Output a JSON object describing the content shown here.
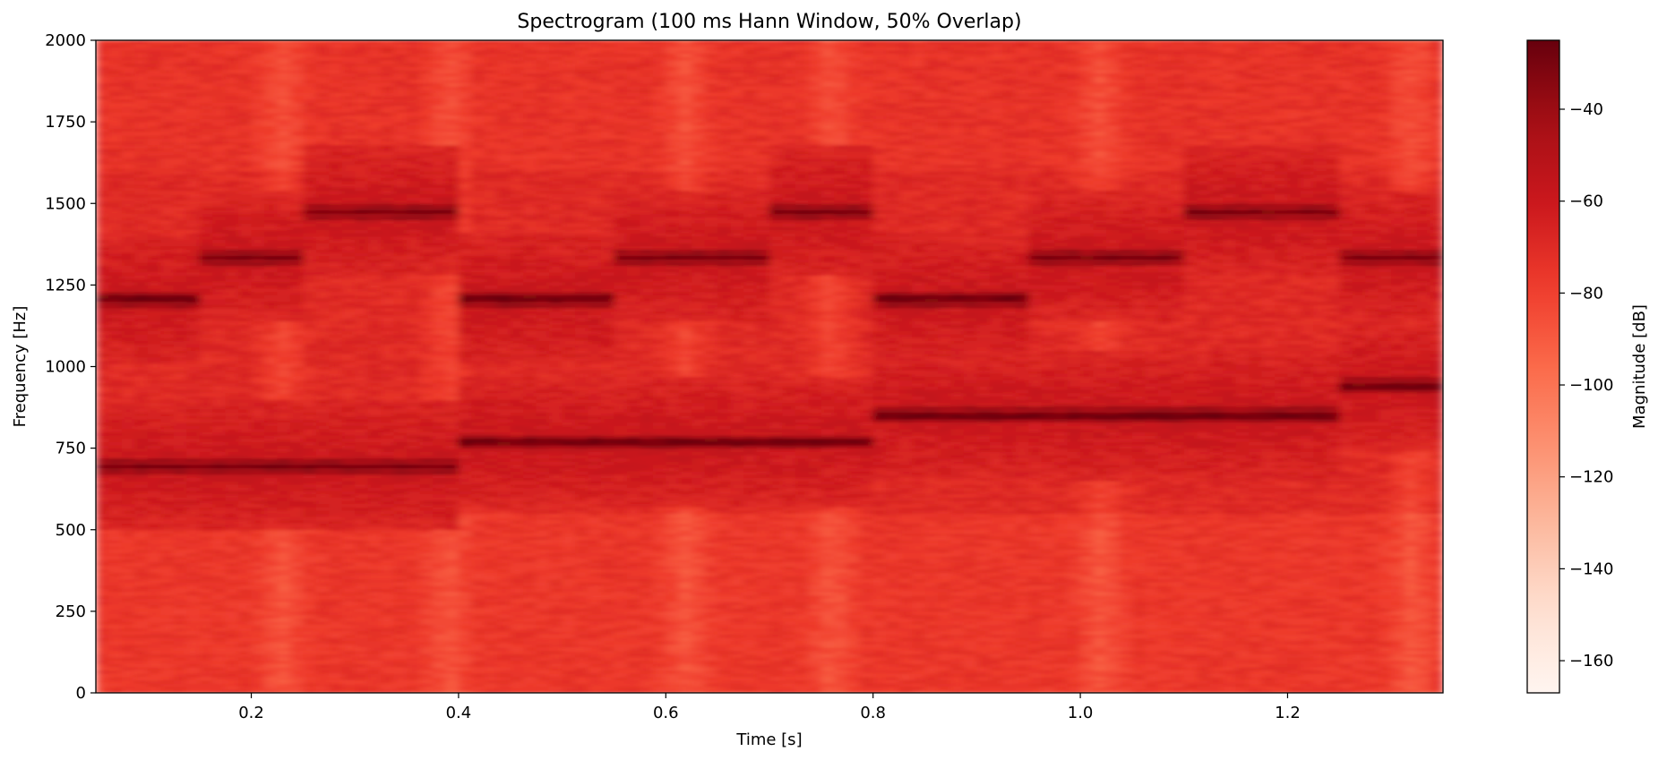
{
  "chart_data": {
    "type": "heatmap",
    "title": "Spectrogram (100 ms Hann Window, 50% Overlap)",
    "xlabel": "Time [s]",
    "ylabel": "Frequency [Hz]",
    "xlim": [
      0.05,
      1.35
    ],
    "ylim": [
      0,
      2000
    ],
    "xticks": [
      0.2,
      0.4,
      0.6,
      0.8,
      1.0,
      1.2
    ],
    "xtick_labels": [
      "0.2",
      "0.4",
      "0.6",
      "0.8",
      "1.0",
      "1.2"
    ],
    "yticks": [
      0,
      250,
      500,
      750,
      1000,
      1250,
      1500,
      1750,
      2000
    ],
    "ytick_labels": [
      "0",
      "250",
      "500",
      "750",
      "1000",
      "1250",
      "1500",
      "1750",
      "2000"
    ],
    "colormap": "Reds",
    "colorbar": {
      "label": "Magnitude [dB]",
      "range": [
        -167,
        -25
      ],
      "ticks": [
        -40,
        -60,
        -80,
        -100,
        -120,
        -140,
        -160
      ],
      "tick_labels": [
        "−40",
        "−60",
        "−80",
        "−100",
        "−120",
        "−140",
        "−160"
      ]
    },
    "tone_segments": [
      {
        "t_start": 0.05,
        "t_end": 0.15,
        "freqs_hz": [
          697,
          1209
        ]
      },
      {
        "t_start": 0.15,
        "t_end": 0.25,
        "freqs_hz": [
          697,
          1336
        ]
      },
      {
        "t_start": 0.25,
        "t_end": 0.4,
        "freqs_hz": [
          697,
          1477
        ]
      },
      {
        "t_start": 0.4,
        "t_end": 0.55,
        "freqs_hz": [
          770,
          1209
        ]
      },
      {
        "t_start": 0.55,
        "t_end": 0.7,
        "freqs_hz": [
          770,
          1336
        ]
      },
      {
        "t_start": 0.7,
        "t_end": 0.8,
        "freqs_hz": [
          770,
          1477
        ]
      },
      {
        "t_start": 0.8,
        "t_end": 0.95,
        "freqs_hz": [
          852,
          1209
        ]
      },
      {
        "t_start": 0.95,
        "t_end": 1.1,
        "freqs_hz": [
          852,
          1336
        ]
      },
      {
        "t_start": 1.1,
        "t_end": 1.25,
        "freqs_hz": [
          852,
          1477
        ]
      },
      {
        "t_start": 1.25,
        "t_end": 1.35,
        "freqs_hz": [
          941,
          1336
        ]
      }
    ],
    "levels_db": {
      "tone_peak": -28,
      "near_tone": -58,
      "background": -82,
      "lighter_bands": -100
    },
    "lighter_time_bands_s": [
      0.23,
      0.39,
      0.62,
      0.76,
      1.02,
      1.32
    ],
    "colors": {
      "cmap_dark": "#67000d",
      "cmap_mid": "#ef3b2c",
      "cmap_light": "#fff5f0"
    }
  }
}
